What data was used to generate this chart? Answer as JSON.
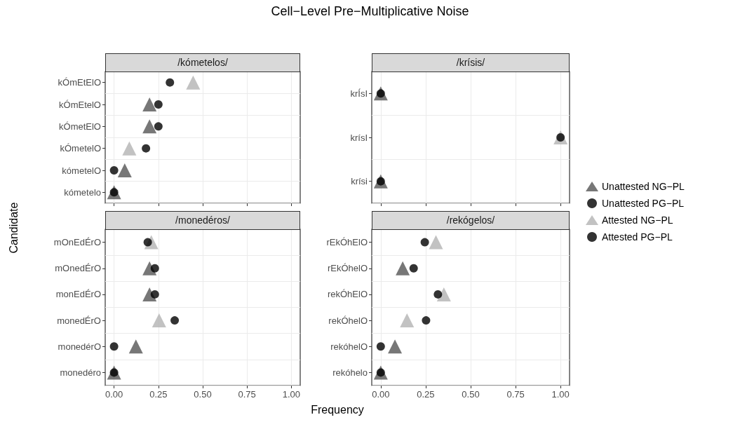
{
  "chart_data": [
    {
      "type": "scatter",
      "title": "Cell−Level Pre−Multiplicative Noise",
      "xlabel": "Frequency",
      "ylabel": "Candidate",
      "subtitle": "/kómetelos/",
      "orientation": "horizontal",
      "categories": [
        "kÓmEtElO",
        "kÓmEtelO",
        "kÓmetElO",
        "kÓmetelO",
        "kómetelO",
        "kómetelo"
      ],
      "xlim": [
        -0.05,
        1.05
      ],
      "xticks": [
        0,
        0.25,
        0.5,
        0.75,
        1
      ],
      "grid": true,
      "tick_labels": "y",
      "series": [
        {
          "color": "#555555",
          "marker": "triangle",
          "values": [
            null,
            0.2,
            0.2,
            null,
            0.06,
            0
          ]
        },
        {
          "color": "#000000",
          "marker": "circle",
          "values": [
            null,
            0.25,
            0.25,
            null,
            0,
            0
          ]
        },
        {
          "color": "#b3b3b3",
          "marker": "triangle",
          "values": [
            0.446,
            null,
            null,
            0.086,
            null,
            null
          ]
        },
        {
          "color": "#000000",
          "marker": "circle",
          "values": [
            0.315,
            null,
            null,
            0.18,
            null,
            null
          ]
        }
      ]
    },
    {
      "type": "scatter",
      "subtitle": "/krísis/",
      "orientation": "horizontal",
      "categories": [
        "krÍsI",
        "krísI",
        "krísi"
      ],
      "xlim": [
        -0.05,
        1.05
      ],
      "xticks": [
        0,
        0.25,
        0.5,
        0.75,
        1
      ],
      "grid": true,
      "tick_labels": "y",
      "legend": "right",
      "series": [
        {
          "name": "Unattested NG−PL",
          "color": "#555555",
          "marker": "triangle",
          "values": [
            0,
            null,
            0
          ]
        },
        {
          "name": "Unattested PG−PL",
          "color": "#000000",
          "marker": "circle",
          "values": [
            0,
            null,
            0
          ]
        },
        {
          "name": "Attested NG−PL",
          "color": "#b3b3b3",
          "marker": "triangle",
          "values": [
            null,
            1,
            null
          ]
        },
        {
          "name": "Attested PG−PL",
          "color": "#000000",
          "marker": "circle",
          "values": [
            null,
            1,
            null
          ]
        }
      ]
    },
    {
      "type": "scatter",
      "subtitle": "/monedéros/",
      "orientation": "horizontal",
      "categories": [
        "mOnEdÉrO",
        "mOnedÉrO",
        "monEdÉrO",
        "monedÉrO",
        "monedérO",
        "monedéro"
      ],
      "xlim": [
        -0.05,
        1.05
      ],
      "xticks": [
        {
          "value": 0,
          "label": "0.00"
        },
        {
          "value": 0.25,
          "label": "0.25"
        },
        {
          "value": 0.5,
          "label": "0.50"
        },
        {
          "value": 0.75,
          "label": "0.75"
        },
        {
          "value": 1,
          "label": "1.00"
        }
      ],
      "grid": true,
      "series": [
        {
          "color": "#555555",
          "marker": "triangle",
          "values": [
            null,
            0.2,
            0.2,
            null,
            0.123,
            0
          ]
        },
        {
          "color": "#000000",
          "marker": "circle",
          "values": [
            null,
            0.23,
            0.23,
            null,
            0,
            0
          ]
        },
        {
          "color": "#b3b3b3",
          "marker": "triangle",
          "values": [
            0.21,
            null,
            null,
            0.254,
            null,
            null
          ]
        },
        {
          "color": "#000000",
          "marker": "circle",
          "values": [
            0.19,
            null,
            null,
            0.342,
            null,
            null
          ]
        }
      ]
    },
    {
      "type": "scatter",
      "subtitle": "/rekógelos/",
      "orientation": "horizontal",
      "categories": [
        "rEkÓhElO",
        "rEkÓhelO",
        "rekÓhElO",
        "rekÓhelO",
        "rekóhelO",
        "rekóhelo"
      ],
      "xlim": [
        -0.05,
        1.05
      ],
      "xticks": [
        {
          "value": 0,
          "label": "0.00"
        },
        {
          "value": 0.25,
          "label": "0.25"
        },
        {
          "value": 0.5,
          "label": "0.50"
        },
        {
          "value": 0.75,
          "label": "0.75"
        },
        {
          "value": 1,
          "label": "1.00"
        }
      ],
      "grid": true,
      "series": [
        {
          "color": "#555555",
          "marker": "triangle",
          "values": [
            null,
            0.122,
            null,
            null,
            0.079,
            0
          ]
        },
        {
          "color": "#000000",
          "marker": "circle",
          "values": [
            null,
            0.183,
            null,
            null,
            0,
            0
          ]
        },
        {
          "color": "#b3b3b3",
          "marker": "triangle",
          "values": [
            0.307,
            null,
            0.351,
            0.146,
            null,
            null
          ]
        },
        {
          "color": "#000000",
          "marker": "circle",
          "values": [
            0.245,
            null,
            0.318,
            0.252,
            null,
            null
          ]
        }
      ]
    }
  ]
}
